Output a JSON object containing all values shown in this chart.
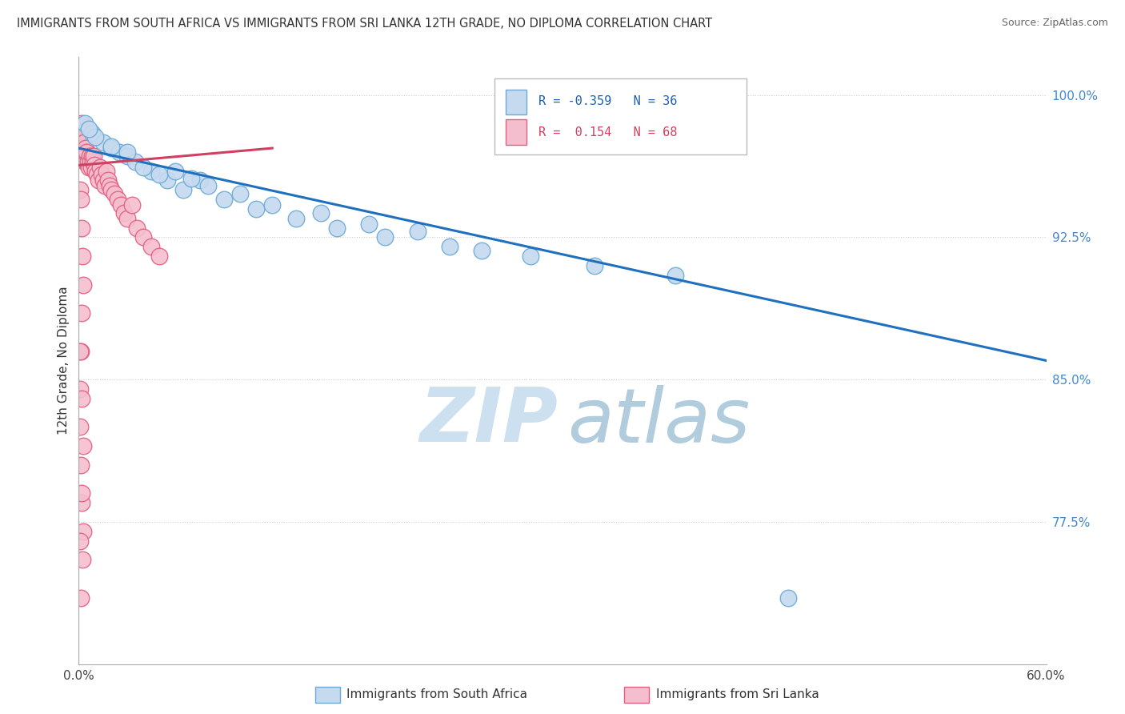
{
  "title": "IMMIGRANTS FROM SOUTH AFRICA VS IMMIGRANTS FROM SRI LANKA 12TH GRADE, NO DIPLOMA CORRELATION CHART",
  "source": "Source: ZipAtlas.com",
  "xmin": 0.0,
  "xmax": 60.0,
  "ymin": 70.0,
  "ymax": 102.0,
  "r_blue": -0.359,
  "n_blue": 36,
  "r_pink": 0.154,
  "n_pink": 68,
  "blue_color": "#c5d9ef",
  "blue_edge": "#6aaad4",
  "pink_color": "#f5bece",
  "pink_edge": "#e06080",
  "blue_line_color": "#2070c0",
  "pink_line_color": "#d04060",
  "watermark_zip_color": "#cce0f0",
  "watermark_atlas_color": "#b0ccdd",
  "legend_label_blue": "Immigrants from South Africa",
  "legend_label_pink": "Immigrants from Sri Lanka",
  "ylabel": "12th Grade, No Diploma",
  "blue_trend_x0": 0.0,
  "blue_trend_y0": 97.2,
  "blue_trend_x1": 60.0,
  "blue_trend_y1": 86.0,
  "pink_trend_x0": 0.0,
  "pink_trend_y0": 96.3,
  "pink_trend_x1": 12.0,
  "pink_trend_y1": 97.2,
  "south_africa_x": [
    0.4,
    0.8,
    1.5,
    2.0,
    2.5,
    3.0,
    3.5,
    4.5,
    5.5,
    6.5,
    7.5,
    9.0,
    11.0,
    13.5,
    16.0,
    19.0,
    23.0,
    28.0,
    32.0,
    37.0,
    4.0,
    5.0,
    8.0,
    10.0,
    12.0,
    15.0,
    18.0,
    21.0,
    25.0,
    6.0,
    7.0,
    3.0,
    2.0,
    1.0,
    0.6,
    44.0
  ],
  "south_africa_y": [
    98.5,
    98.0,
    97.5,
    97.2,
    97.0,
    96.8,
    96.5,
    96.0,
    95.5,
    95.0,
    95.5,
    94.5,
    94.0,
    93.5,
    93.0,
    92.5,
    92.0,
    91.5,
    91.0,
    90.5,
    96.2,
    95.8,
    95.2,
    94.8,
    94.2,
    93.8,
    93.2,
    92.8,
    91.8,
    96.0,
    95.6,
    97.0,
    97.3,
    97.8,
    98.2,
    73.5
  ],
  "sri_lanka_x": [
    0.05,
    0.08,
    0.1,
    0.12,
    0.15,
    0.18,
    0.2,
    0.22,
    0.25,
    0.28,
    0.3,
    0.32,
    0.35,
    0.38,
    0.4,
    0.42,
    0.45,
    0.48,
    0.5,
    0.55,
    0.6,
    0.65,
    0.7,
    0.75,
    0.8,
    0.85,
    0.9,
    0.95,
    1.0,
    1.1,
    1.2,
    1.3,
    1.4,
    1.5,
    1.6,
    1.7,
    1.8,
    1.9,
    2.0,
    2.2,
    2.4,
    2.6,
    2.8,
    3.0,
    3.3,
    3.6,
    4.0,
    4.5,
    5.0,
    0.1,
    0.15,
    0.2,
    0.25,
    0.3,
    0.2,
    0.15,
    0.1,
    0.08,
    0.12,
    0.18,
    0.3,
    0.25,
    0.15,
    0.1,
    0.2,
    0.3,
    0.2,
    0.1
  ],
  "sri_lanka_y": [
    97.5,
    97.8,
    98.2,
    98.0,
    97.5,
    97.0,
    98.5,
    97.3,
    97.8,
    97.2,
    97.0,
    96.8,
    97.5,
    97.0,
    96.5,
    97.2,
    96.8,
    96.5,
    97.0,
    96.5,
    96.2,
    96.8,
    96.5,
    96.2,
    96.8,
    96.5,
    96.8,
    96.3,
    96.0,
    95.8,
    95.5,
    96.2,
    95.8,
    95.5,
    95.2,
    96.0,
    95.5,
    95.2,
    95.0,
    94.8,
    94.5,
    94.2,
    93.8,
    93.5,
    94.2,
    93.0,
    92.5,
    92.0,
    91.5,
    95.0,
    94.5,
    93.0,
    91.5,
    90.0,
    88.5,
    86.5,
    84.5,
    82.5,
    80.5,
    78.5,
    77.0,
    75.5,
    73.5,
    76.5,
    79.0,
    81.5,
    84.0,
    86.5
  ]
}
